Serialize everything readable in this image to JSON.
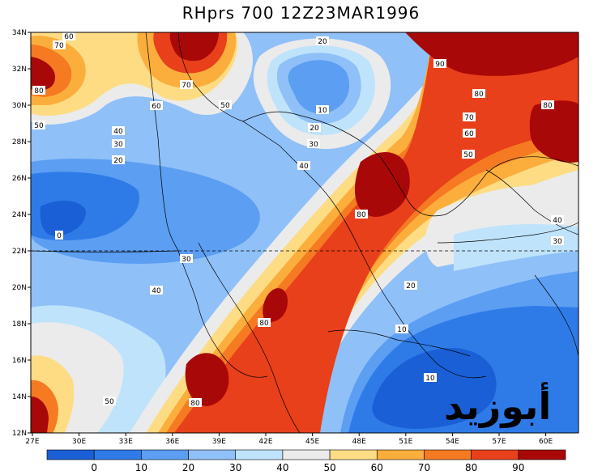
{
  "title": "RHprs 700 12Z23MAR1996",
  "watermark": "أبوزيد",
  "lat_labels": [
    "34N",
    "32N",
    "30N",
    "28N",
    "26N",
    "24N",
    "22N",
    "20N",
    "18N",
    "16N",
    "14N",
    "12N"
  ],
  "lon_labels": [
    "27E",
    "30E",
    "33E",
    "36E",
    "39E",
    "42E",
    "45E",
    "48E",
    "51E",
    "54E",
    "57E",
    "60E"
  ],
  "colorbar": {
    "labels": [
      "0",
      "10",
      "20",
      "30",
      "40",
      "50",
      "60",
      "70",
      "80",
      "90"
    ],
    "colors": [
      "#1a5fd6",
      "#2e7be8",
      "#5b9ef2",
      "#8fc0f8",
      "#bfe3fb",
      "#ebebeb",
      "#fddc84",
      "#fcae3c",
      "#f57a22",
      "#e8401a",
      "#a90808"
    ]
  },
  "contour_labels": [
    {
      "id": "c60a",
      "text": "60"
    },
    {
      "id": "c70a",
      "text": "70"
    },
    {
      "id": "c80a",
      "text": "80"
    },
    {
      "id": "c70b",
      "text": "70"
    },
    {
      "id": "c60b",
      "text": "60"
    },
    {
      "id": "c50a",
      "text": "50"
    },
    {
      "id": "c50b",
      "text": "50"
    },
    {
      "id": "c40a",
      "text": "40"
    },
    {
      "id": "c30a",
      "text": "30"
    },
    {
      "id": "c20a",
      "text": "20"
    },
    {
      "id": "c0",
      "text": "0"
    },
    {
      "id": "c30b",
      "text": "30"
    },
    {
      "id": "c40b",
      "text": "40"
    },
    {
      "id": "c20b",
      "text": "20"
    },
    {
      "id": "c10a",
      "text": "10"
    },
    {
      "id": "c20c",
      "text": "20"
    },
    {
      "id": "c30c",
      "text": "30"
    },
    {
      "id": "c40c",
      "text": "40"
    },
    {
      "id": "c90a",
      "text": "90"
    },
    {
      "id": "c80b",
      "text": "80"
    },
    {
      "id": "c70c",
      "text": "70"
    },
    {
      "id": "c60c",
      "text": "60"
    },
    {
      "id": "c50c",
      "text": "50"
    },
    {
      "id": "c80c",
      "text": "80"
    },
    {
      "id": "c80d",
      "text": "80"
    },
    {
      "id": "c40d",
      "text": "40"
    },
    {
      "id": "c30d",
      "text": "30"
    },
    {
      "id": "c20d",
      "text": "20"
    },
    {
      "id": "c80e",
      "text": "80"
    },
    {
      "id": "c10b",
      "text": "10"
    },
    {
      "id": "c10c",
      "text": "10"
    },
    {
      "id": "c80f",
      "text": "80"
    },
    {
      "id": "c50d",
      "text": "50"
    }
  ]
}
